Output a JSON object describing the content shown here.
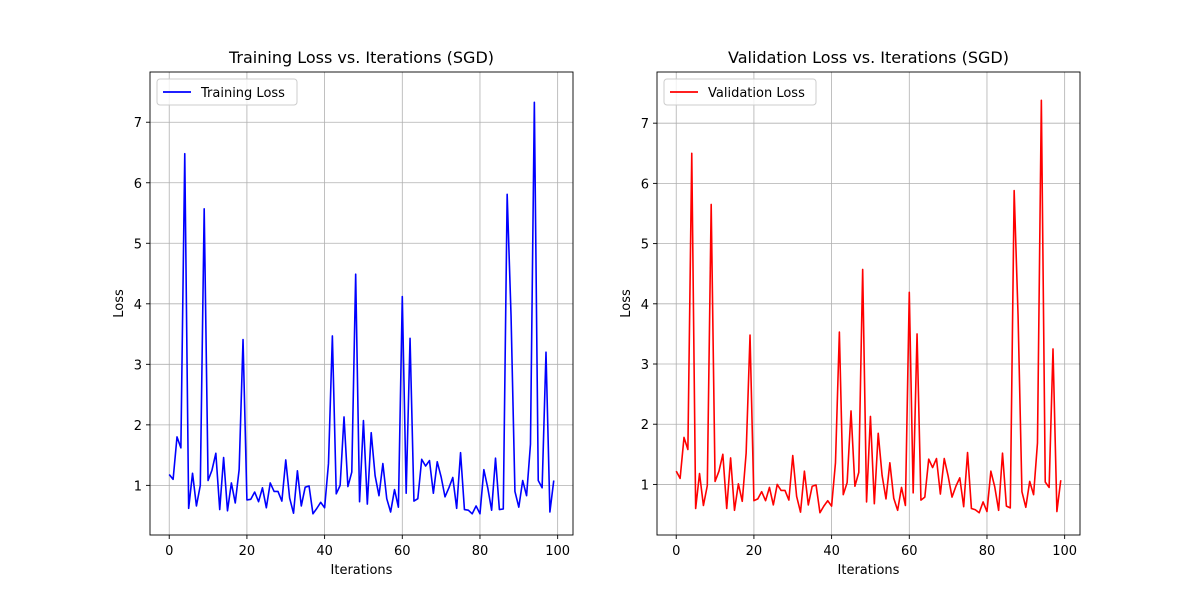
{
  "chart_data": [
    {
      "type": "line",
      "title": "Training Loss vs. Iterations (SGD)",
      "xlabel": "Iterations",
      "ylabel": "Loss",
      "xlim": [
        -4.95,
        103.95
      ],
      "ylim": [
        0.18,
        7.83
      ],
      "xticks": [
        0,
        20,
        40,
        60,
        80,
        100
      ],
      "yticks": [
        1,
        2,
        3,
        4,
        5,
        6,
        7
      ],
      "grid": true,
      "legend": "top-left",
      "series": [
        {
          "name": "Training Loss",
          "color": "#0000ff",
          "x": [
            0,
            1,
            2,
            3,
            4,
            5,
            6,
            7,
            8,
            9,
            10,
            11,
            12,
            13,
            14,
            15,
            16,
            17,
            18,
            19,
            20,
            21,
            22,
            23,
            24,
            25,
            26,
            27,
            28,
            29,
            30,
            31,
            32,
            33,
            34,
            35,
            36,
            37,
            38,
            39,
            40,
            41,
            42,
            43,
            44,
            45,
            46,
            47,
            48,
            49,
            50,
            51,
            52,
            53,
            54,
            55,
            56,
            57,
            58,
            59,
            60,
            61,
            62,
            63,
            64,
            65,
            66,
            67,
            68,
            69,
            70,
            71,
            72,
            73,
            74,
            75,
            76,
            77,
            78,
            79,
            80,
            81,
            82,
            83,
            84,
            85,
            86,
            87,
            88,
            89,
            90,
            91,
            92,
            93,
            94,
            95,
            96,
            97,
            98,
            99
          ],
          "values": [
            1.18,
            1.1,
            1.8,
            1.62,
            6.48,
            0.62,
            1.2,
            0.66,
            1.0,
            5.57,
            1.08,
            1.25,
            1.53,
            0.6,
            1.46,
            0.58,
            1.04,
            0.71,
            1.26,
            3.41,
            0.76,
            0.77,
            0.89,
            0.73,
            0.96,
            0.63,
            1.04,
            0.9,
            0.9,
            0.74,
            1.42,
            0.79,
            0.54,
            1.24,
            0.66,
            0.97,
            0.99,
            0.53,
            0.62,
            0.72,
            0.63,
            1.36,
            3.47,
            0.86,
            1.0,
            2.13,
            0.98,
            1.22,
            4.49,
            0.73,
            2.07,
            0.69,
            1.87,
            1.16,
            0.83,
            1.36,
            0.78,
            0.56,
            0.93,
            0.64,
            4.12,
            0.87,
            3.43,
            0.74,
            0.78,
            1.43,
            1.32,
            1.41,
            0.87,
            1.39,
            1.14,
            0.81,
            0.96,
            1.13,
            0.62,
            1.54,
            0.6,
            0.59,
            0.53,
            0.66,
            0.53,
            1.26,
            0.96,
            0.59,
            1.45,
            0.6,
            0.61,
            5.81,
            3.8,
            0.9,
            0.64,
            1.08,
            0.83,
            1.68,
            7.33,
            1.08,
            0.96,
            3.2,
            0.56,
            1.08
          ]
        }
      ]
    },
    {
      "type": "line",
      "title": "Validation Loss vs. Iterations (SGD)",
      "xlabel": "Iterations",
      "ylabel": "Loss",
      "xlim": [
        -4.95,
        103.95
      ],
      "ylim": [
        0.16,
        7.85
      ],
      "xticks": [
        0,
        20,
        40,
        60,
        80,
        100
      ],
      "yticks": [
        1,
        2,
        3,
        4,
        5,
        6,
        7
      ],
      "grid": true,
      "legend": "top-left",
      "series": [
        {
          "name": "Validation Loss",
          "color": "#ff0000",
          "x": [
            0,
            1,
            2,
            3,
            4,
            5,
            6,
            7,
            8,
            9,
            10,
            11,
            12,
            13,
            14,
            15,
            16,
            17,
            18,
            19,
            20,
            21,
            22,
            23,
            24,
            25,
            26,
            27,
            28,
            29,
            30,
            31,
            32,
            33,
            34,
            35,
            36,
            37,
            38,
            39,
            40,
            41,
            42,
            43,
            44,
            45,
            46,
            47,
            48,
            49,
            50,
            51,
            52,
            53,
            54,
            55,
            56,
            57,
            58,
            59,
            60,
            61,
            62,
            63,
            64,
            65,
            66,
            67,
            68,
            69,
            70,
            71,
            72,
            73,
            74,
            75,
            76,
            77,
            78,
            79,
            80,
            81,
            82,
            83,
            84,
            85,
            86,
            87,
            88,
            89,
            90,
            91,
            92,
            93,
            94,
            95,
            96,
            97,
            98,
            99
          ],
          "values": [
            1.22,
            1.1,
            1.78,
            1.58,
            6.5,
            0.6,
            1.18,
            0.65,
            0.98,
            5.65,
            1.05,
            1.22,
            1.5,
            0.6,
            1.44,
            0.57,
            1.01,
            0.72,
            1.52,
            3.48,
            0.73,
            0.76,
            0.88,
            0.73,
            0.95,
            0.66,
            1.0,
            0.9,
            0.9,
            0.74,
            1.48,
            0.8,
            0.54,
            1.22,
            0.66,
            0.97,
            0.99,
            0.53,
            0.64,
            0.73,
            0.64,
            1.36,
            3.53,
            0.83,
            1.03,
            2.22,
            0.97,
            1.2,
            4.57,
            0.71,
            2.13,
            0.68,
            1.85,
            1.15,
            0.76,
            1.36,
            0.77,
            0.57,
            0.95,
            0.65,
            4.19,
            0.86,
            3.5,
            0.74,
            0.79,
            1.42,
            1.28,
            1.43,
            0.84,
            1.43,
            1.14,
            0.79,
            0.97,
            1.11,
            0.63,
            1.53,
            0.6,
            0.58,
            0.53,
            0.71,
            0.55,
            1.22,
            0.96,
            0.57,
            1.52,
            0.64,
            0.61,
            5.88,
            3.81,
            0.88,
            0.62,
            1.05,
            0.83,
            1.69,
            7.38,
            1.04,
            0.95,
            3.25,
            0.55,
            1.07
          ]
        }
      ]
    }
  ]
}
